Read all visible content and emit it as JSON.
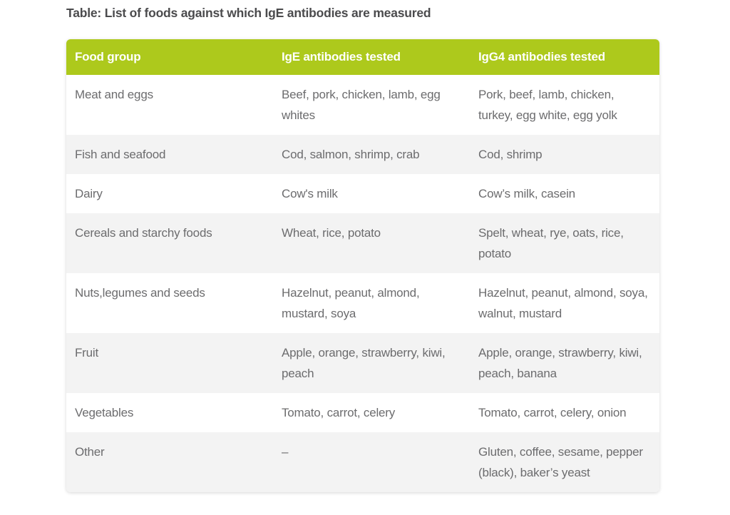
{
  "page": {
    "title": "Table: List of foods against which IgE antibodies are measured"
  },
  "table": {
    "headers": [
      "Food group",
      "IgE antibodies tested",
      "IgG4 antibodies tested"
    ],
    "rows": [
      {
        "food_group": "Meat and eggs",
        "ige": "Beef, pork, chicken, lamb, egg whites",
        "igg4": "Pork, beef, lamb, chicken, turkey, egg white, egg yolk"
      },
      {
        "food_group": "Fish and seafood",
        "ige": "Cod, salmon, shrimp, crab",
        "igg4": "Cod, shrimp"
      },
      {
        "food_group": "Dairy",
        "ige": "Cow's milk",
        "igg4": "Cow’s milk, casein"
      },
      {
        "food_group": "Cereals and starchy foods",
        "ige": "Wheat, rice, potato",
        "igg4": "Spelt, wheat, rye, oats, rice, potato"
      },
      {
        "food_group": "Nuts,legumes and seeds",
        "ige": "Hazelnut, peanut, almond, mustard, soya",
        "igg4": "Hazelnut, peanut, almond, soya, walnut, mustard"
      },
      {
        "food_group": "Fruit",
        "ige": "Apple, orange, strawberry, kiwi, peach",
        "igg4": "Apple, orange, strawberry, kiwi, peach, banana"
      },
      {
        "food_group": "Vegetables",
        "ige": "Tomato, carrot, celery",
        "igg4": "Tomato, carrot, celery, onion"
      },
      {
        "food_group": "Other",
        "ige": "–",
        "igg4": "Gluten, coffee, sesame, pepper (black), baker’s yeast"
      }
    ],
    "colors": {
      "header_bg": "#adc91c",
      "header_text": "#ffffff",
      "stripe_bg": "#f3f3f3",
      "row_bg": "#ffffff",
      "body_text": "#6c6c6e",
      "title_text": "#4b4b4d"
    }
  }
}
